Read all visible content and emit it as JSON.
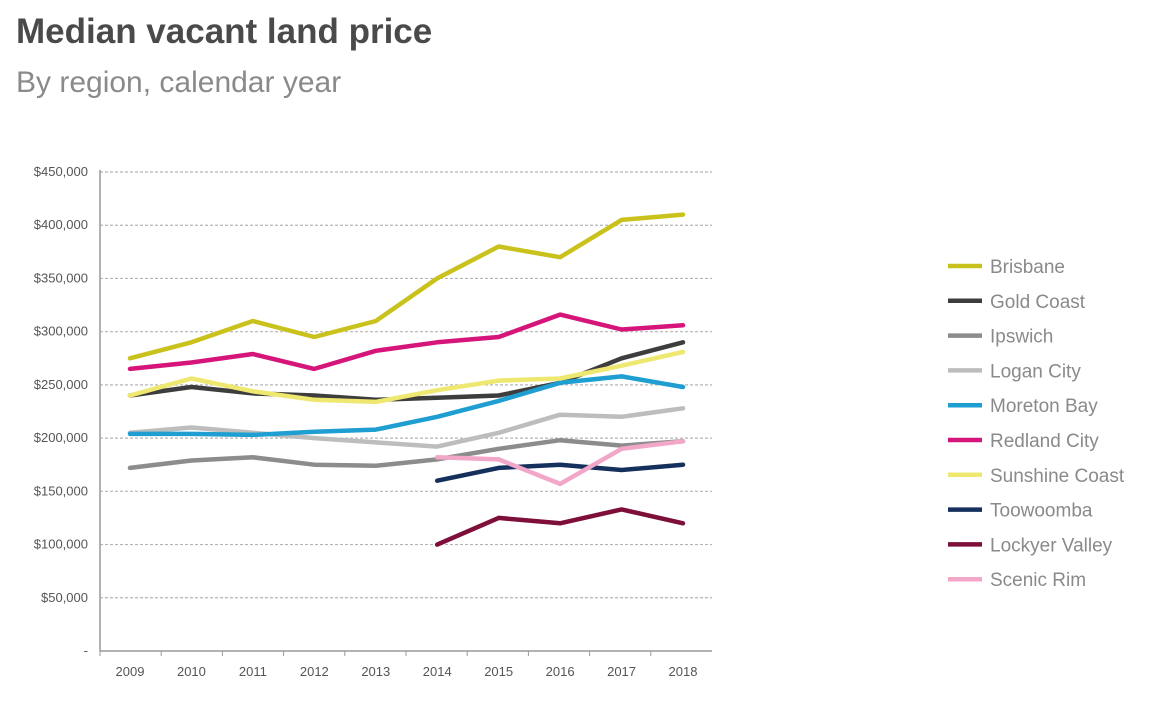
{
  "chart_data": {
    "type": "line",
    "title": "Median vacant land price",
    "subtitle": "By region, calendar year",
    "xlabel": "",
    "ylabel": "",
    "x": [
      2009,
      2010,
      2011,
      2012,
      2013,
      2014,
      2015,
      2016,
      2017,
      2018
    ],
    "ylim": [
      0,
      450000
    ],
    "yticks": [
      0,
      50000,
      100000,
      150000,
      200000,
      250000,
      300000,
      350000,
      400000,
      450000
    ],
    "ytick_labels": [
      "-",
      "$50,000",
      "$100,000",
      "$150,000",
      "$200,000",
      "$250,000",
      "$300,000",
      "$350,000",
      "$400,000",
      "$450,000"
    ],
    "grid": true,
    "legend_position": "right",
    "series": [
      {
        "name": "Brisbane",
        "color": "#c9c21c",
        "values": [
          275000,
          290000,
          310000,
          295000,
          310000,
          350000,
          380000,
          370000,
          405000,
          410000
        ]
      },
      {
        "name": "Gold Coast",
        "color": "#3d3d3d",
        "values": [
          240000,
          248000,
          242000,
          240000,
          236000,
          238000,
          240000,
          252000,
          275000,
          290000
        ]
      },
      {
        "name": "Ipswich",
        "color": "#8c8c8c",
        "values": [
          172000,
          179000,
          182000,
          175000,
          174000,
          180000,
          190000,
          198000,
          193000,
          197000
        ]
      },
      {
        "name": "Logan City",
        "color": "#bdbdbd",
        "values": [
          205000,
          210000,
          205000,
          200000,
          196000,
          192000,
          205000,
          222000,
          220000,
          228000
        ]
      },
      {
        "name": "Moreton Bay",
        "color": "#1e9ed1",
        "values": [
          204000,
          204000,
          203000,
          206000,
          208000,
          220000,
          235000,
          252000,
          258000,
          248000
        ]
      },
      {
        "name": "Redland City",
        "color": "#d6157a",
        "values": [
          265000,
          271000,
          279000,
          265000,
          282000,
          290000,
          295000,
          316000,
          302000,
          306000
        ]
      },
      {
        "name": "Sunshine Coast",
        "color": "#eee870",
        "values": [
          240000,
          256000,
          244000,
          236000,
          234000,
          245000,
          254000,
          256000,
          268000,
          281000
        ]
      },
      {
        "name": "Toowoomba",
        "color": "#16305e",
        "values": [
          null,
          null,
          null,
          null,
          null,
          160000,
          172000,
          175000,
          170000,
          175000
        ]
      },
      {
        "name": "Lockyer Valley",
        "color": "#7d0f3a",
        "values": [
          null,
          null,
          null,
          null,
          null,
          100000,
          125000,
          120000,
          133000,
          120000
        ]
      },
      {
        "name": "Scenic Rim",
        "color": "#f2a6c8",
        "values": [
          null,
          null,
          null,
          null,
          null,
          182000,
          180000,
          157000,
          190000,
          197000
        ]
      }
    ]
  }
}
